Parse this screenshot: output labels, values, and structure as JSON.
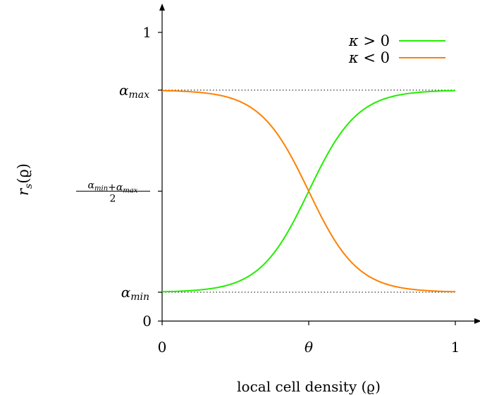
{
  "chart_data": {
    "type": "line",
    "xlabel": "local cell density (ϱ)",
    "ylabel": "r_s(ϱ)",
    "xlim": [
      0,
      1
    ],
    "ylim": [
      0,
      1
    ],
    "grid": false,
    "legend_position": "top-right",
    "x_ticks": [
      {
        "value": 0,
        "label": "0"
      },
      {
        "value": 0.5,
        "label": "θ"
      },
      {
        "value": 1,
        "label": "1"
      }
    ],
    "y_ticks": [
      {
        "value": 0,
        "label": "0",
        "type": "plain"
      },
      {
        "value": 0.1,
        "label": "α_min",
        "type": "alpha",
        "base": "α",
        "sub": "min"
      },
      {
        "value": 0.45,
        "label": "(α_min+α_max)/2",
        "type": "fraction",
        "num": "α_min+α_max",
        "den": "2"
      },
      {
        "value": 0.8,
        "label": "α_max",
        "type": "alpha",
        "base": "α",
        "sub": "max"
      },
      {
        "value": 1,
        "label": "1",
        "type": "plain"
      }
    ],
    "reference_lines": [
      {
        "y": 0.1,
        "label": "α_min",
        "style": "dotted"
      },
      {
        "y": 0.8,
        "label": "α_max",
        "style": "dotted"
      }
    ],
    "theta": 0.5,
    "alpha_min": 0.1,
    "alpha_max": 0.8,
    "steepness": 12,
    "series": [
      {
        "name": "κ > 0",
        "name_parts": {
          "sym": "κ",
          "rel": ">",
          "val": "0"
        },
        "color": "#22ee00",
        "direction": "increasing"
      },
      {
        "name": "κ < 0",
        "name_parts": {
          "sym": "κ",
          "rel": "<",
          "val": "0"
        },
        "color": "#ff8000",
        "direction": "decreasing"
      }
    ]
  }
}
